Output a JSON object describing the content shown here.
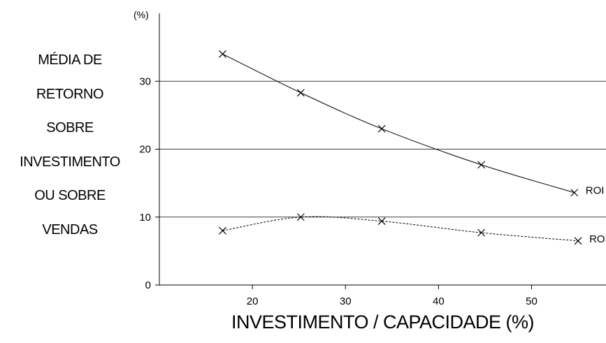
{
  "chart_data": {
    "type": "line",
    "ylabel_lines": [
      "MÉDIA DE",
      "RETORNO",
      "SOBRE",
      "INVESTIMENTO",
      "OU SOBRE",
      "VENDAS"
    ],
    "xlabel": "INVESTIMENTO / CAPACIDADE (%)",
    "y_unit": "(%)",
    "xlim": [
      10,
      58
    ],
    "ylim": [
      0,
      40
    ],
    "x_ticks": [
      20,
      30,
      40,
      50
    ],
    "y_ticks": [
      0,
      10,
      20,
      30
    ],
    "grid": "horizontal",
    "series": [
      {
        "name": "ROI",
        "line": "solid",
        "x": [
          16.8,
          25.2,
          33.9,
          44.6,
          54.6
        ],
        "y": [
          34.0,
          28.3,
          23.0,
          17.7,
          13.6
        ]
      },
      {
        "name": "ROS",
        "line": "dashed",
        "x": [
          16.8,
          25.2,
          33.9,
          44.6,
          55.0
        ],
        "y": [
          8.0,
          10.0,
          9.4,
          7.7,
          6.5
        ]
      }
    ]
  }
}
